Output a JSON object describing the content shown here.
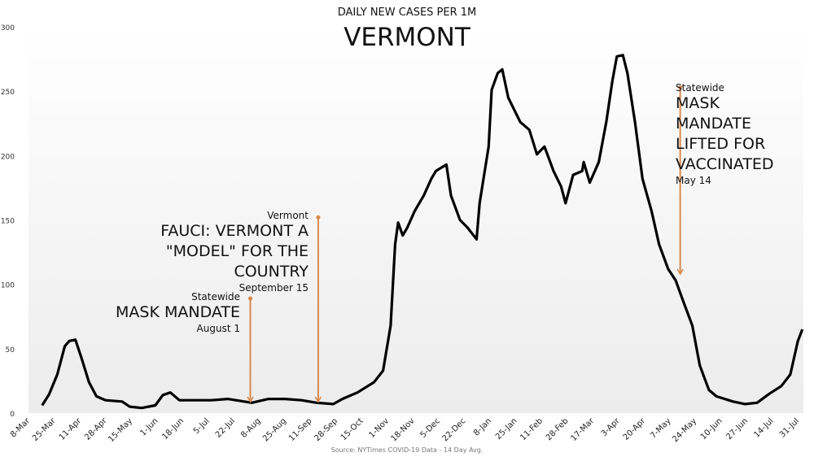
{
  "chart_data": {
    "type": "line",
    "subtitle": "DAILY NEW CASES PER 1M",
    "title": "VERMONT",
    "source": "Source: NYTimes COVID-19 Data - 14 Day Avg.",
    "xlabel": "",
    "ylabel": "",
    "ylim": [
      0,
      300
    ],
    "yticks": [
      0,
      50,
      100,
      150,
      200,
      250,
      300
    ],
    "x_unit": "days after 8-Mar",
    "xlim": [
      0,
      512
    ],
    "xtick_step_days": 17,
    "xticks": [
      "8-Mar",
      "25-Mar",
      "11-Apr",
      "28-Apr",
      "15-May",
      "1-Jun",
      "18-Jun",
      "5-Jul",
      "22-Jul",
      "8-Aug",
      "25-Aug",
      "11-Sep",
      "28-Sep",
      "15-Oct",
      "1-Nov",
      "18-Nov",
      "5-Dec",
      "22-Dec",
      "8-Jan",
      "25-Jan",
      "11-Feb",
      "28-Feb",
      "17-Mar",
      "3-Apr",
      "20-Apr",
      "7-May",
      "24-May",
      "10-Jun",
      "27-Jun",
      "14-Jul",
      "31-Jul"
    ],
    "grid": false,
    "series": [
      {
        "name": "Daily new cases per 1M (14 day avg)",
        "color": "#000000",
        "points": [
          [
            8,
            6
          ],
          [
            12.6,
            14.5
          ],
          [
            18,
            30
          ],
          [
            23,
            52
          ],
          [
            26,
            56
          ],
          [
            30,
            57
          ],
          [
            34,
            43
          ],
          [
            39,
            24
          ],
          [
            44,
            13
          ],
          [
            50,
            10
          ],
          [
            61,
            9
          ],
          [
            66,
            5
          ],
          [
            74,
            4
          ],
          [
            83,
            6
          ],
          [
            88,
            14
          ],
          [
            93,
            16
          ],
          [
            99,
            10
          ],
          [
            110,
            10
          ],
          [
            120,
            10
          ],
          [
            131,
            11
          ],
          [
            142,
            9
          ],
          [
            147,
            8
          ],
          [
            158,
            11
          ],
          [
            169,
            11
          ],
          [
            180,
            10
          ],
          [
            190,
            8
          ],
          [
            201,
            7
          ],
          [
            207,
            11
          ],
          [
            217,
            16
          ],
          [
            228,
            24
          ],
          [
            234,
            33
          ],
          [
            239,
            68
          ],
          [
            242,
            131
          ],
          [
            244,
            148
          ],
          [
            247,
            138
          ],
          [
            250,
            144
          ],
          [
            255,
            157
          ],
          [
            261,
            169
          ],
          [
            266,
            182
          ],
          [
            269,
            188
          ],
          [
            276,
            193
          ],
          [
            279,
            169
          ],
          [
            285,
            150
          ],
          [
            290,
            144
          ],
          [
            296,
            135
          ],
          [
            298,
            163
          ],
          [
            304,
            207
          ],
          [
            306,
            251
          ],
          [
            310,
            264
          ],
          [
            313,
            267
          ],
          [
            317,
            245
          ],
          [
            325,
            226
          ],
          [
            331,
            220
          ],
          [
            336,
            201
          ],
          [
            341,
            207
          ],
          [
            347,
            188
          ],
          [
            352,
            176
          ],
          [
            355,
            163
          ],
          [
            360,
            185
          ],
          [
            366,
            188
          ],
          [
            367,
            195
          ],
          [
            371,
            179
          ],
          [
            377,
            195
          ],
          [
            382,
            226
          ],
          [
            386,
            258
          ],
          [
            389,
            277
          ],
          [
            393,
            278
          ],
          [
            396,
            264
          ],
          [
            401,
            226
          ],
          [
            406,
            182
          ],
          [
            412,
            157
          ],
          [
            417,
            131
          ],
          [
            423,
            112
          ],
          [
            428,
            103
          ],
          [
            433,
            87
          ],
          [
            439,
            68
          ],
          [
            444,
            37
          ],
          [
            450,
            18
          ],
          [
            455,
            13
          ],
          [
            466,
            9
          ],
          [
            474,
            7
          ],
          [
            482,
            8
          ],
          [
            490,
            15
          ],
          [
            498,
            21
          ],
          [
            504,
            30
          ],
          [
            509,
            56
          ],
          [
            512,
            65
          ]
        ]
      }
    ],
    "annotations": [
      {
        "id": "mask",
        "day": 146,
        "top_value": 89,
        "small": "Statewide",
        "big": [
          "MASK MANDATE"
        ],
        "date": "August 1"
      },
      {
        "id": "fauci",
        "day": 191,
        "top_value": 152,
        "small": "Vermont",
        "big": [
          "FAUCI: VERMONT A",
          "\"MODEL\" FOR THE",
          "COUNTRY"
        ],
        "date": "September 15"
      },
      {
        "id": "lifted",
        "day": 431,
        "top_value": 253,
        "small": "Statewide",
        "big": [
          "MASK",
          "MANDATE",
          "LIFTED FOR",
          "VACCINATED"
        ],
        "date": "May 14"
      }
    ],
    "annotation_color": "#d98a4e"
  }
}
